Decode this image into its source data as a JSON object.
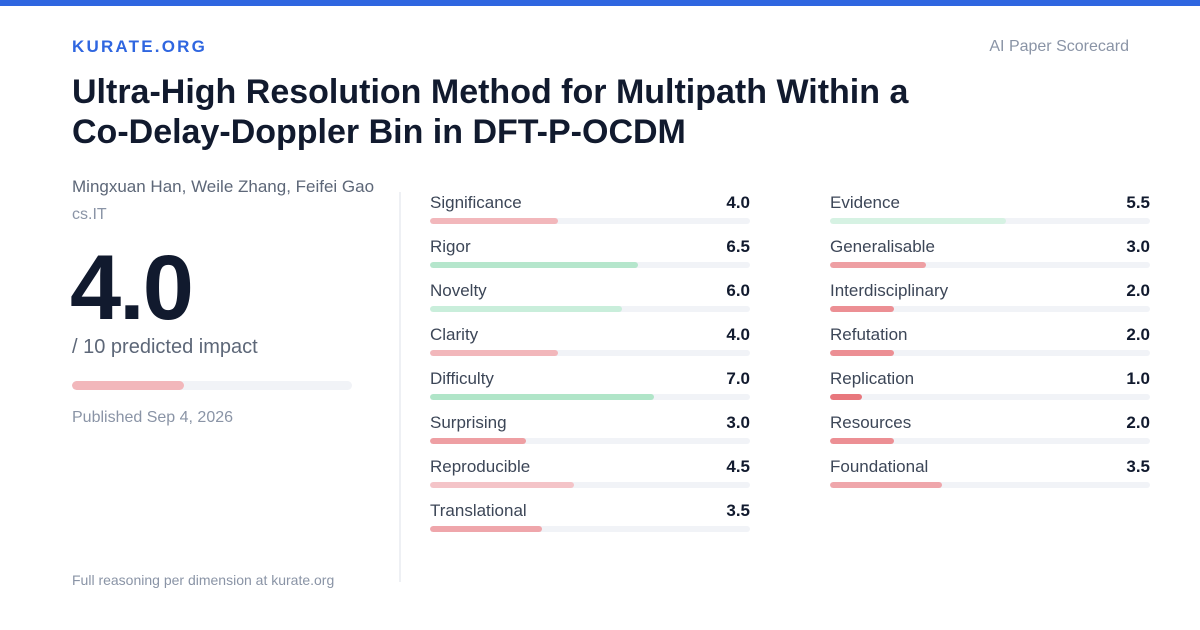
{
  "header": {
    "brand": "KURATE.ORG",
    "tagline": "AI Paper Scorecard"
  },
  "paper": {
    "title": "Ultra-High Resolution Method for Multipath Within a Co-Delay-Doppler Bin in DFT-P-OCDM",
    "authors": "Mingxuan Han, Weile Zhang, Feifei Gao",
    "category": "cs.IT",
    "published": "Published Sep 4, 2026"
  },
  "score": {
    "value": "4.0",
    "fraction": 0.4,
    "caption": "/ 10 predicted impact",
    "bar_color": "#f2b7bb"
  },
  "footer": {
    "note": "Full reasoning per dimension at kurate.org"
  },
  "dimensions_left": [
    {
      "label": "Significance",
      "score": "4.0",
      "fraction": 0.4,
      "color": "#f2b7bb"
    },
    {
      "label": "Rigor",
      "score": "6.5",
      "fraction": 0.65,
      "color": "#b5e6cc"
    },
    {
      "label": "Novelty",
      "score": "6.0",
      "fraction": 0.6,
      "color": "#c9eedb"
    },
    {
      "label": "Clarity",
      "score": "4.0",
      "fraction": 0.4,
      "color": "#f2b7bb"
    },
    {
      "label": "Difficulty",
      "score": "7.0",
      "fraction": 0.7,
      "color": "#b0e5c8"
    },
    {
      "label": "Surprising",
      "score": "3.0",
      "fraction": 0.3,
      "color": "#ee9fa3"
    },
    {
      "label": "Reproducible",
      "score": "4.5",
      "fraction": 0.45,
      "color": "#f4c4c8"
    },
    {
      "label": "Translational",
      "score": "3.5",
      "fraction": 0.35,
      "color": "#efa6ab"
    }
  ],
  "dimensions_right": [
    {
      "label": "Evidence",
      "score": "5.5",
      "fraction": 0.55,
      "color": "#d6f2e3"
    },
    {
      "label": "Generalisable",
      "score": "3.0",
      "fraction": 0.3,
      "color": "#ee9fa3"
    },
    {
      "label": "Interdisciplinary",
      "score": "2.0",
      "fraction": 0.2,
      "color": "#ec8f94"
    },
    {
      "label": "Refutation",
      "score": "2.0",
      "fraction": 0.2,
      "color": "#ec8f94"
    },
    {
      "label": "Replication",
      "score": "1.0",
      "fraction": 0.1,
      "color": "#e8777d"
    },
    {
      "label": "Resources",
      "score": "2.0",
      "fraction": 0.2,
      "color": "#ec8f94"
    },
    {
      "label": "Foundational",
      "score": "3.5",
      "fraction": 0.35,
      "color": "#efa6ab"
    }
  ]
}
